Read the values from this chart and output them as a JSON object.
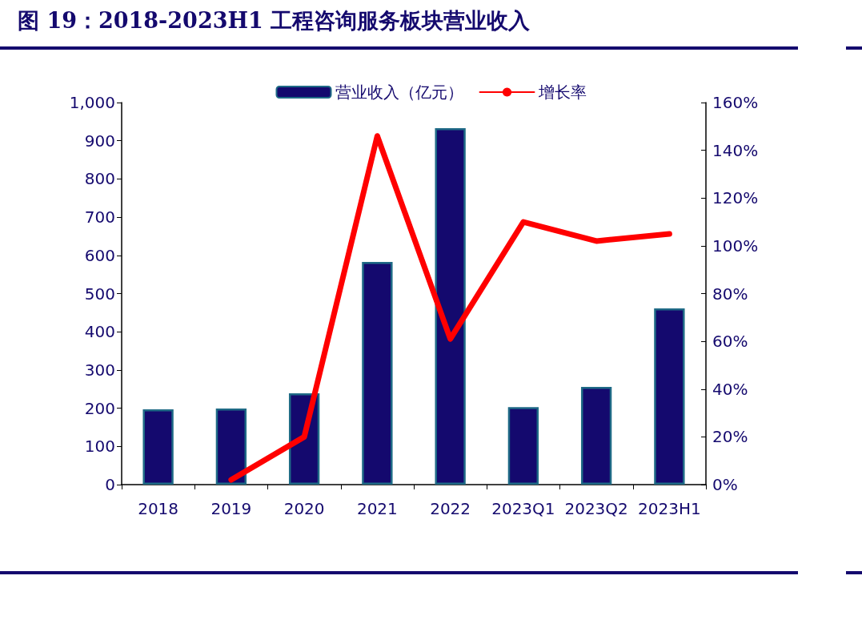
{
  "chart_data": {
    "type": "bar",
    "title": "图 19：2018-2023H1 工程咨询服务板块营业收入",
    "categories": [
      "2018",
      "2019",
      "2020",
      "2021",
      "2022",
      "2023Q1",
      "2023Q2",
      "2023H1"
    ],
    "series": [
      {
        "name": "营业收入（亿元）",
        "color": "#14096e",
        "values": [
          197,
          199,
          239,
          583,
          933,
          203,
          256,
          461
        ]
      },
      {
        "name": "增长率",
        "type": "line",
        "axis": "y2",
        "color": "#ff0000",
        "values": [
          null,
          2,
          20,
          146,
          61,
          110,
          102,
          105
        ]
      }
    ],
    "ylim": [
      0,
      1000
    ],
    "yticks": [
      0,
      100,
      200,
      300,
      400,
      500,
      600,
      700,
      800,
      900,
      {
        "value": 1000,
        "label": "1,000"
      }
    ],
    "y2lim": [
      0,
      160
    ],
    "y2ticks": [
      {
        "value": 0,
        "label": "0%"
      },
      {
        "value": 20,
        "label": "20%"
      },
      {
        "value": 40,
        "label": "40%"
      },
      {
        "value": 60,
        "label": "60%"
      },
      {
        "value": 80,
        "label": "80%"
      },
      {
        "value": 100,
        "label": "100%"
      },
      {
        "value": 120,
        "label": "120%"
      },
      {
        "value": 140,
        "label": "140%"
      },
      {
        "value": 160,
        "label": "160%"
      }
    ],
    "legend": "top",
    "grid": false,
    "marker": "none"
  }
}
